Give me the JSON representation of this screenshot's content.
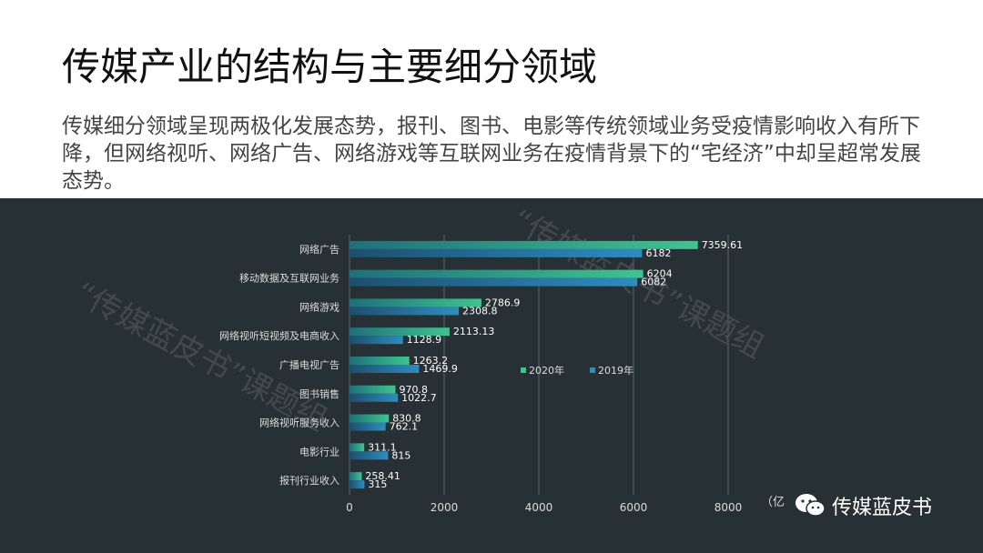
{
  "slide": {
    "title": "传媒产业的结构与主要细分领域",
    "description": "传媒细分领域呈现两极化发展态势，报刊、图书、电影等传统领域业务受疫情影响收入有所下降，但网络视听、网络广告、网络游戏等互联网业务在疫情背景下的“宅经济”中却呈超常发展态势。",
    "unit_fragment": "（亿",
    "brand": "传媒蓝皮书",
    "watermark_lines": [
      "“传媒蓝皮书”课题组",
      "“传媒蓝皮书”课题组"
    ]
  },
  "colors": {
    "background_dark": "#273035",
    "series_2020": "#3ec48f",
    "series_2019": "#2e8dbf",
    "text_light": "#dcdcdc"
  },
  "chart_data": {
    "type": "bar",
    "orientation": "horizontal",
    "categories": [
      "网络广告",
      "移动数据及互联网业务",
      "网络游戏",
      "网络视听短视频及电商收入",
      "广播电视广告",
      "图书销售",
      "网络视听服务收入",
      "电影行业",
      "报刊行业收入"
    ],
    "series": [
      {
        "name": "2020年",
        "values": [
          7359.61,
          6204,
          2786.9,
          2113.13,
          1263.2,
          970.8,
          830.8,
          311.1,
          258.41
        ],
        "labels": [
          "7359.61",
          "6204",
          "2786.9",
          "2113.13",
          "1263.2",
          "970.8",
          "830.8",
          "311.1",
          "258.41"
        ]
      },
      {
        "name": "2019年",
        "values": [
          6182,
          6082,
          2308.8,
          1128.9,
          1469.9,
          1022.7,
          762.1,
          815,
          315
        ],
        "labels": [
          "6182",
          "6082",
          "2308.8",
          "1128.9",
          "1469.9",
          "1022.7",
          "762.1",
          "815",
          "315"
        ]
      }
    ],
    "xlim": [
      0,
      8000
    ],
    "xticks": [
      0,
      2000,
      4000,
      6000,
      8000
    ],
    "grid": true,
    "legend": "right-middle"
  }
}
